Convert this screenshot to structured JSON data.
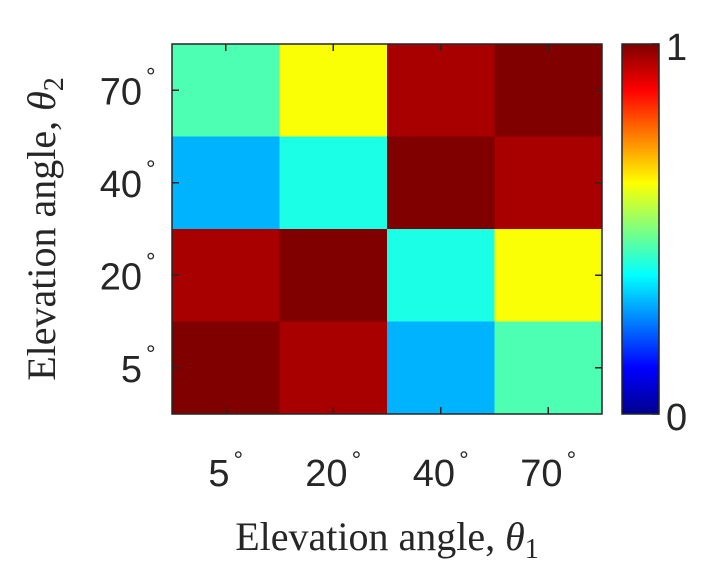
{
  "chart_data": {
    "type": "heatmap",
    "x_categories": [
      "5",
      "20",
      "40",
      "70"
    ],
    "y_categories": [
      "5",
      "20",
      "40",
      "70"
    ],
    "tick_suffix": "°",
    "xlabel": {
      "prefix": "Elevation angle, ",
      "symbol": "θ",
      "subscript": "1"
    },
    "ylabel": {
      "prefix": "Elevation angle, ",
      "symbol": "θ",
      "subscript": "2"
    },
    "colormap": "jet",
    "clim": [
      0,
      1
    ],
    "colorbar_ticks": [
      "0",
      "1"
    ],
    "rows_top_to_bottom_y": [
      "70",
      "40",
      "20",
      "5"
    ],
    "values": [
      [
        0.45,
        0.62,
        0.96,
        1.0
      ],
      [
        0.3,
        0.4,
        1.0,
        0.96
      ],
      [
        0.96,
        1.0,
        0.4,
        0.62
      ],
      [
        1.0,
        0.96,
        0.3,
        0.45
      ]
    ]
  }
}
